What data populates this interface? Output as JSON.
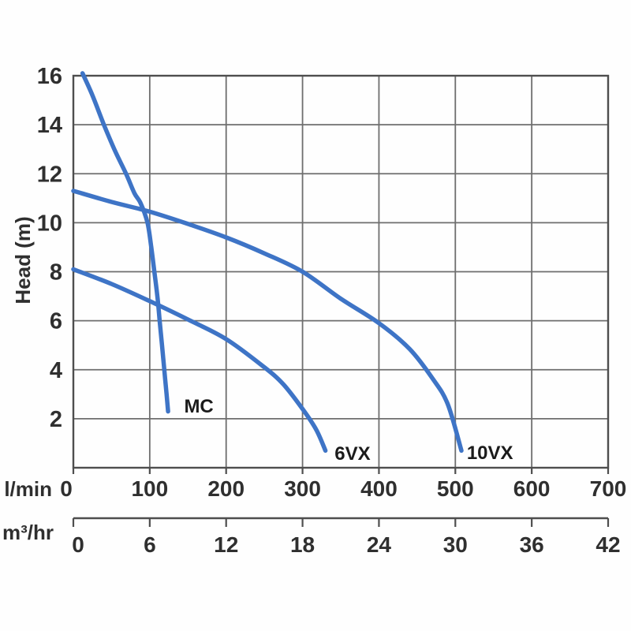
{
  "axes": {
    "y_title": "Head (m)",
    "lmin_label": "l/min",
    "m3hr_label": "m³/hr",
    "head_ticks": [
      16,
      14,
      12,
      10,
      8,
      6,
      4,
      2
    ],
    "lmin_ticks": [
      0,
      100,
      200,
      300,
      400,
      500,
      600,
      700
    ],
    "m3hr_ticks": [
      0,
      6,
      12,
      18,
      24,
      30,
      36,
      42
    ]
  },
  "colors": {
    "curve_blue": "#3e74c6",
    "grid": "#6e6e6e",
    "frame": "#4e4e4e",
    "tick_text": "#2f2f2f",
    "curve_label_text": "#1b1b1b"
  },
  "chart_data": {
    "type": "line",
    "title": "",
    "xlabel": "l/min",
    "xlabel_secondary": "m³/hr",
    "ylabel": "Head (m)",
    "xlim_lmin": [
      0,
      700
    ],
    "xlim_m3hr": [
      0,
      42
    ],
    "ylim": [
      0,
      16
    ],
    "grid": true,
    "unit_relation": "6 m³/hr = 100 l/min (secondary axis aligned with primary)",
    "legend_position": "inline-curve-labels",
    "series": [
      {
        "name": "MC",
        "points": [
          [
            12,
            16.1
          ],
          [
            25,
            15.2
          ],
          [
            40,
            14.0
          ],
          [
            55,
            12.9
          ],
          [
            69,
            12.0
          ],
          [
            80,
            11.2
          ],
          [
            88,
            10.8
          ],
          [
            97,
            10.0
          ],
          [
            102,
            9.0
          ],
          [
            106,
            8.0
          ],
          [
            110,
            7.0
          ],
          [
            113,
            6.0
          ],
          [
            116,
            5.0
          ],
          [
            119,
            4.0
          ],
          [
            122,
            3.0
          ],
          [
            124,
            2.3
          ]
        ],
        "label_at": [
          145,
          2.25
        ]
      },
      {
        "name": "6VX",
        "points": [
          [
            0,
            8.1
          ],
          [
            50,
            7.5
          ],
          [
            100,
            6.8
          ],
          [
            150,
            6.05
          ],
          [
            200,
            5.25
          ],
          [
            250,
            4.1
          ],
          [
            275,
            3.4
          ],
          [
            300,
            2.4
          ],
          [
            318,
            1.55
          ],
          [
            330,
            0.7
          ]
        ],
        "label_at": [
          342,
          0.32
        ]
      },
      {
        "name": "10VX",
        "points": [
          [
            0,
            11.3
          ],
          [
            50,
            10.85
          ],
          [
            100,
            10.45
          ],
          [
            150,
            9.95
          ],
          [
            200,
            9.4
          ],
          [
            250,
            8.75
          ],
          [
            300,
            8.0
          ],
          [
            350,
            6.9
          ],
          [
            400,
            5.9
          ],
          [
            440,
            4.85
          ],
          [
            470,
            3.65
          ],
          [
            490,
            2.6
          ],
          [
            508,
            0.7
          ]
        ],
        "label_at": [
          515,
          0.35
        ]
      }
    ]
  }
}
